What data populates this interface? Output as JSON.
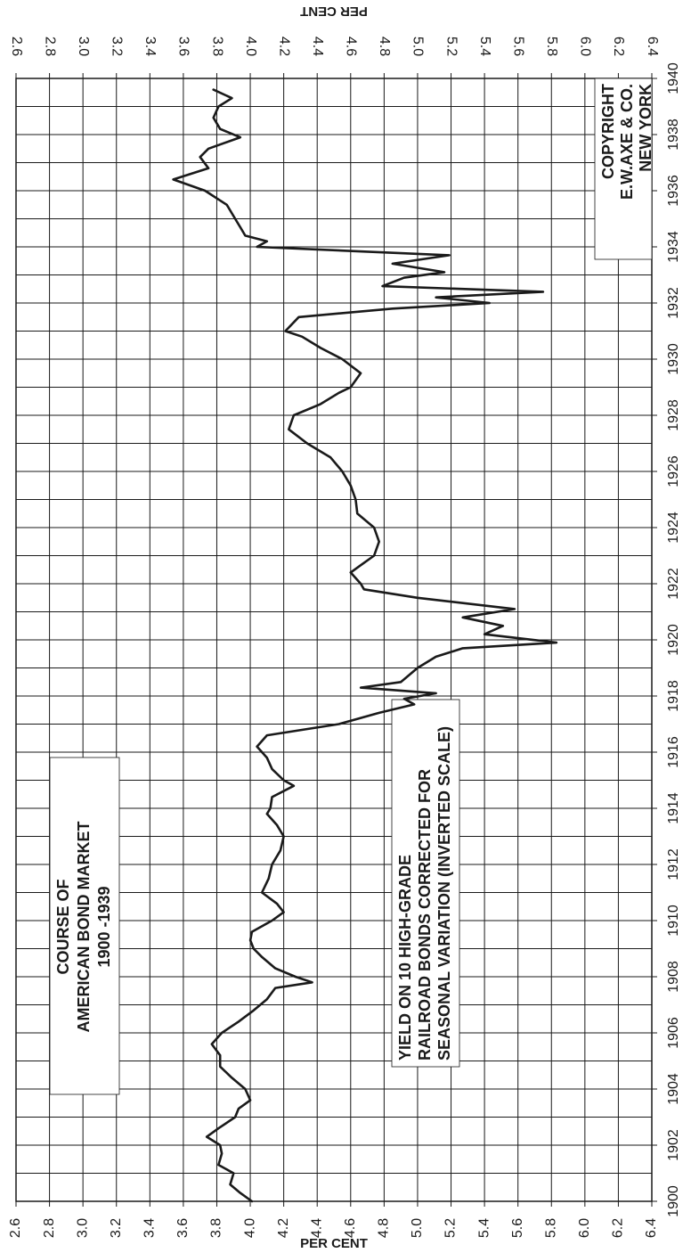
{
  "chart_data": {
    "type": "line",
    "title_lines": [
      "COURSE OF",
      "AMERICAN BOND MARKET",
      "1900 -1939"
    ],
    "note_lines": [
      "YIELD ON 10 HIGH-GRADE",
      "RAILROAD BONDS CORRECTED FOR",
      "SEASONAL VARIATION (INVERTED SCALE)"
    ],
    "copyright_lines": [
      "COPYRIGHT",
      "E.W.AXE & CO.",
      "NEW YORK"
    ],
    "ylabel": "PER CENT",
    "color": "#1a1a1a",
    "grid": true,
    "xlim": [
      1900,
      1940
    ],
    "xticks": [
      1900,
      1902,
      1904,
      1906,
      1908,
      1910,
      1912,
      1914,
      1916,
      1918,
      1920,
      1922,
      1924,
      1926,
      1928,
      1930,
      1932,
      1934,
      1936,
      1938,
      1940
    ],
    "ylim": [
      2.6,
      6.4
    ],
    "yticks": [
      {
        "value": 2.6,
        "label": "2.6"
      },
      {
        "value": 2.8,
        "label": "2.8"
      },
      {
        "value": 3.0,
        "label": "3.0"
      },
      {
        "value": 3.2,
        "label": "3.2"
      },
      {
        "value": 3.4,
        "label": "3.4"
      },
      {
        "value": 3.6,
        "label": "3.6"
      },
      {
        "value": 3.8,
        "label": "3.8"
      },
      {
        "value": 4.0,
        "label": "4.0"
      },
      {
        "value": 4.2,
        "label": "4.2"
      },
      {
        "value": 4.4,
        "label": "4.4"
      },
      {
        "value": 4.6,
        "label": "4.6"
      },
      {
        "value": 4.8,
        "label": "4.8"
      },
      {
        "value": 5.0,
        "label": "5.0"
      },
      {
        "value": 5.2,
        "label": "5.2"
      },
      {
        "value": 5.4,
        "label": "5.4"
      },
      {
        "value": 5.6,
        "label": "5.6"
      },
      {
        "value": 5.8,
        "label": "5.8"
      },
      {
        "value": 6.0,
        "label": "6.0"
      },
      {
        "value": 6.2,
        "label": "6.2"
      },
      {
        "value": 6.4,
        "label": "6.4"
      }
    ],
    "x": [
      1900.0,
      1900.3,
      1900.6,
      1901.0,
      1901.3,
      1901.7,
      1902.0,
      1902.3,
      1902.6,
      1903.0,
      1903.3,
      1903.6,
      1904.0,
      1904.4,
      1904.8,
      1905.2,
      1905.6,
      1906.0,
      1906.4,
      1906.8,
      1907.2,
      1907.6,
      1907.8,
      1908.0,
      1908.3,
      1908.7,
      1909.0,
      1909.3,
      1909.6,
      1910.0,
      1910.3,
      1910.6,
      1911.0,
      1911.5,
      1912.0,
      1912.5,
      1913.0,
      1913.4,
      1913.8,
      1914.0,
      1914.4,
      1914.8,
      1915.0,
      1915.4,
      1915.8,
      1916.2,
      1916.6,
      1917.0,
      1917.4,
      1917.7,
      1917.9,
      1918.1,
      1918.3,
      1918.5,
      1919.0,
      1919.4,
      1919.7,
      1919.9,
      1920.2,
      1920.5,
      1920.8,
      1921.1,
      1921.5,
      1921.8,
      1922.0,
      1922.4,
      1922.7,
      1923.0,
      1923.5,
      1924.0,
      1924.5,
      1925.0,
      1925.5,
      1926.0,
      1926.5,
      1927.0,
      1927.5,
      1928.0,
      1928.4,
      1928.8,
      1929.0,
      1929.5,
      1930.0,
      1930.4,
      1930.8,
      1931.0,
      1931.5,
      1931.8,
      1932.0,
      1932.2,
      1932.4,
      1932.6,
      1932.9,
      1933.1,
      1933.4,
      1933.7,
      1934.0,
      1934.2,
      1934.4,
      1934.7,
      1935.0,
      1935.5,
      1936.0,
      1936.4,
      1936.8,
      1937.2,
      1937.5,
      1937.9,
      1938.2,
      1938.6,
      1939.0,
      1939.3,
      1939.6
    ],
    "values": [
      4.01,
      3.94,
      3.88,
      3.9,
      3.81,
      3.83,
      3.82,
      3.74,
      3.81,
      3.91,
      3.93,
      4.0,
      3.97,
      3.89,
      3.82,
      3.82,
      3.77,
      3.83,
      3.93,
      4.02,
      4.1,
      4.15,
      4.37,
      4.27,
      4.15,
      4.07,
      4.02,
      4.0,
      4.01,
      4.13,
      4.2,
      4.16,
      4.07,
      4.11,
      4.13,
      4.18,
      4.2,
      4.16,
      4.1,
      4.12,
      4.13,
      4.26,
      4.2,
      4.13,
      4.1,
      4.04,
      4.1,
      4.53,
      4.77,
      4.98,
      4.92,
      5.11,
      4.66,
      4.9,
      5.0,
      5.11,
      5.27,
      5.83,
      5.4,
      5.51,
      5.27,
      5.58,
      5.0,
      4.68,
      4.66,
      4.6,
      4.67,
      4.74,
      4.77,
      4.74,
      4.64,
      4.63,
      4.6,
      4.55,
      4.48,
      4.34,
      4.23,
      4.26,
      4.42,
      4.53,
      4.6,
      4.66,
      4.55,
      4.42,
      4.31,
      4.21,
      4.29,
      4.85,
      5.43,
      5.11,
      5.75,
      4.79,
      4.92,
      5.16,
      4.85,
      5.19,
      4.04,
      4.1,
      3.97,
      3.94,
      3.91,
      3.86,
      3.73,
      3.54,
      3.75,
      3.7,
      3.75,
      3.94,
      3.82,
      3.78,
      3.81,
      3.89,
      3.78
    ]
  }
}
